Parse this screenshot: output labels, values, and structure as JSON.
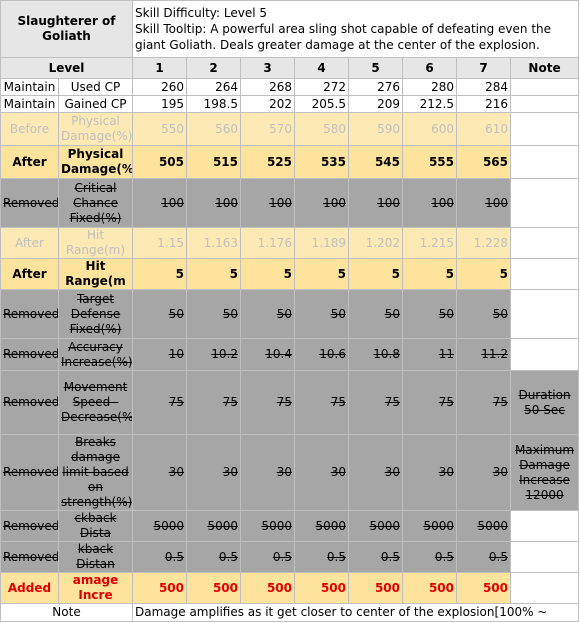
{
  "header": {
    "title": "Slaughterer of Goliath",
    "difficulty": "Skill Difficulty: Level 5",
    "tooltip": "Skill Tooltip: A powerful area sling shot capable of defeating even the giant Goliath. Deals greater damage at the center of the explosion."
  },
  "columns": [
    "Level",
    "1",
    "2",
    "3",
    "4",
    "5",
    "6",
    "7",
    "Note"
  ],
  "rows": [
    {
      "status": "Maintain",
      "name": "Used CP",
      "values": [
        260,
        264,
        268,
        272,
        276,
        280,
        284
      ],
      "background": "#ffffff",
      "color": "#000000",
      "bold": false,
      "strikethrough": false
    },
    {
      "status": "Maintain",
      "name": "Gained CP",
      "values": [
        195,
        198.5,
        202,
        205.5,
        209,
        212.5,
        216
      ],
      "background": "#ffffff",
      "color": "#000000",
      "bold": false,
      "strikethrough": false
    },
    {
      "status": "Before",
      "name": "Physical Damage(%)",
      "values": [
        550,
        560,
        570,
        580,
        590,
        600,
        610
      ],
      "background": "#fde9b4",
      "color": "#c0c0c0",
      "bold": false,
      "strikethrough": false
    },
    {
      "status": "After",
      "name": "Physical Damage(%)",
      "values": [
        505,
        515,
        525,
        535,
        545,
        555,
        565
      ],
      "background": "#fde39b",
      "color": "#000000",
      "bold": true,
      "strikethrough": false
    },
    {
      "status": "Removed",
      "name": "Critical Chance Fixed(%)",
      "values": [
        100,
        100,
        100,
        100,
        100,
        100,
        100
      ],
      "background": "#a6a6a6",
      "color": "#000000",
      "bold": false,
      "strikethrough": true
    },
    {
      "status": "After",
      "name": "Hit Range(m)",
      "values": [
        1.15,
        1.163,
        1.176,
        1.189,
        1.202,
        1.215,
        1.228
      ],
      "background": "#fde9b4",
      "color": "#c0c0c0",
      "bold": false,
      "strikethrough": false
    },
    {
      "status": "After",
      "name": "Hit Range(m",
      "values": [
        5,
        5,
        5,
        5,
        5,
        5,
        5
      ],
      "background": "#fde39b",
      "color": "#000000",
      "bold": true,
      "strikethrough": false
    },
    {
      "status": "Removed",
      "name": "Target Defense Fixed(%)",
      "values": [
        50,
        50,
        50,
        50,
        50,
        50,
        50
      ],
      "background": "#a6a6a6",
      "color": "#000000",
      "bold": false,
      "strikethrough": true
    },
    {
      "status": "Removed",
      "name": "Accuracy Increase(%)",
      "values": [
        10,
        10.2,
        10.4,
        10.6,
        10.8,
        11,
        11.2
      ],
      "background": "#a6a6a6",
      "color": "#000000",
      "bold": false,
      "strikethrough": true
    },
    {
      "status": "Removed",
      "name": "Movement Speed - Decrease(%)",
      "values": [
        75,
        75,
        75,
        75,
        75,
        75,
        75
      ],
      "note": "Duration 50 Sec",
      "background": "#a6a6a6",
      "color": "#000000",
      "bold": false,
      "strikethrough": true
    },
    {
      "status": "Removed",
      "name": "Breaks damage limit based on strength(%)",
      "values": [
        30,
        30,
        30,
        30,
        30,
        30,
        30
      ],
      "note": "Maximum Damage Increase 12000",
      "background": "#a6a6a6",
      "color": "#000000",
      "bold": false,
      "strikethrough": true
    },
    {
      "status": "Removed",
      "name": "ckback Dista",
      "values": [
        5000,
        5000,
        5000,
        5000,
        5000,
        5000,
        5000
      ],
      "background": "#a6a6a6",
      "color": "#000000",
      "bold": false,
      "strikethrough": true
    },
    {
      "status": "Removed",
      "name": "kback Distan",
      "values": [
        0.5,
        0.5,
        0.5,
        0.5,
        0.5,
        0.5,
        0.5
      ],
      "background": "#a6a6a6",
      "color": "#000000",
      "bold": false,
      "strikethrough": true
    },
    {
      "status": "Added",
      "name": "amage Incre",
      "values": [
        500,
        500,
        500,
        500,
        500,
        500,
        500
      ],
      "background": "#fde39b",
      "color": "#e00000",
      "bold": true,
      "strikethrough": false
    }
  ],
  "footer": {
    "label": "Note",
    "text": "Damage amplifies as it get closer to center of the explosion[100% ~"
  }
}
